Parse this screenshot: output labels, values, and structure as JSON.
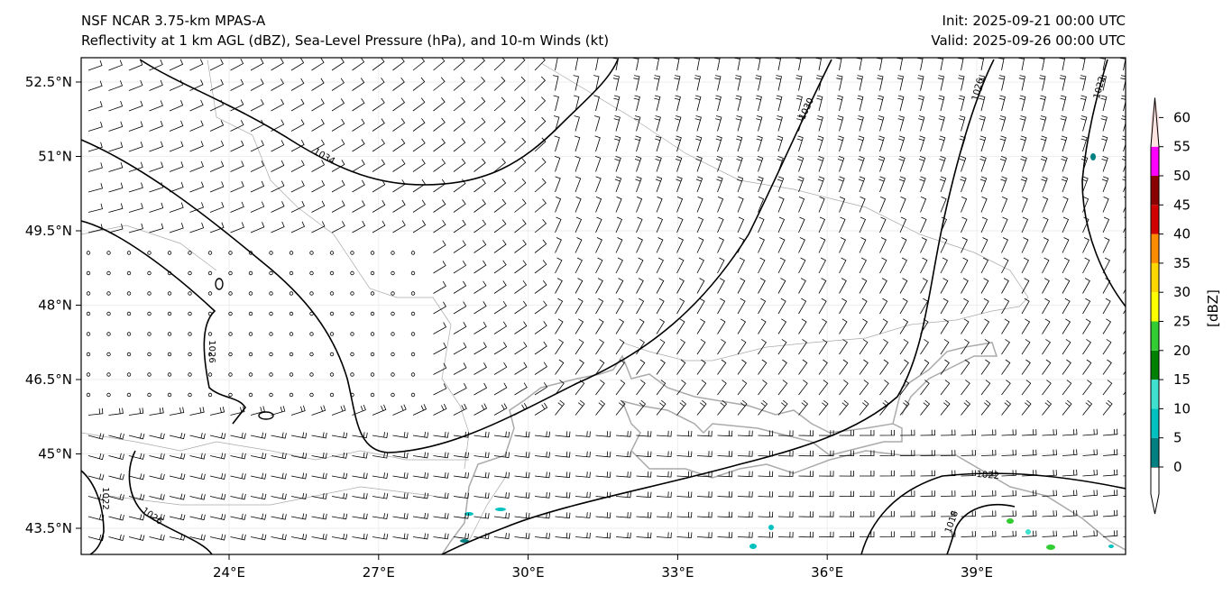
{
  "header": {
    "model": "NSF NCAR 3.75-km MPAS-A",
    "fields": "Reflectivity at 1 km AGL (dBZ), Sea-Level Pressure (hPa), and 10-m Winds (kt)",
    "init": "Init: 2025-09-21 00:00 UTC",
    "valid": "Valid: 2025-09-26 00:00 UTC"
  },
  "axes": {
    "lat_ticks": [
      "52.5°N",
      "51°N",
      "49.5°N",
      "48°N",
      "46.5°N",
      "45°N",
      "43.5°N"
    ],
    "lon_ticks": [
      "24°E",
      "27°E",
      "30°E",
      "33°E",
      "36°E",
      "39°E"
    ]
  },
  "colorbar": {
    "label": "[dBZ]",
    "ticks": [
      "0",
      "5",
      "10",
      "15",
      "20",
      "25",
      "30",
      "35",
      "40",
      "45",
      "50",
      "55",
      "60"
    ],
    "colors": [
      "#008080",
      "#00c0c0",
      "#40e0d0",
      "#008000",
      "#32cd32",
      "#ffff00",
      "#ffd700",
      "#ff8c00",
      "#d00000",
      "#8b0000",
      "#ff00ff",
      "#ffe4e1"
    ]
  },
  "isobar_labels": [
    "1034",
    "1030",
    "1026",
    "1022",
    "1026",
    "1022",
    "1026",
    "1022",
    "1018"
  ]
}
